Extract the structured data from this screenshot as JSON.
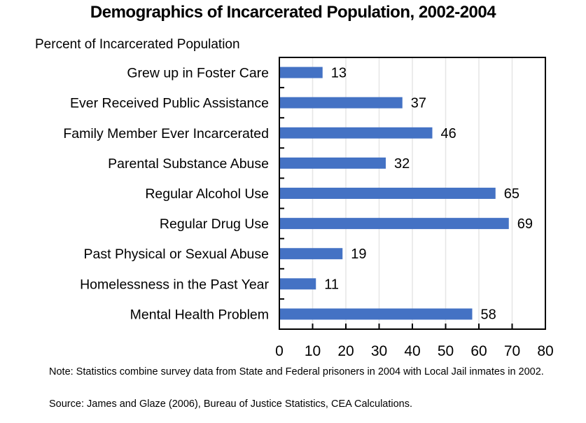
{
  "chart_data": {
    "type": "bar",
    "orientation": "horizontal",
    "title": "Demographics of Incarcerated Population, 2002-2004",
    "ylabel": "Percent of Incarcerated Population",
    "xlabel": "",
    "categories": [
      "Grew up in Foster Care",
      "Ever Received Public Assistance",
      "Family Member Ever Incarcerated",
      "Parental Substance Abuse",
      "Regular Alcohol Use",
      "Regular Drug Use",
      "Past Physical or Sexual Abuse",
      "Homelessness in the Past Year",
      "Mental Health Problem"
    ],
    "values": [
      13,
      37,
      46,
      32,
      65,
      69,
      19,
      11,
      58
    ],
    "data_labels": [
      "13",
      "37",
      "46",
      "32",
      "65",
      "69",
      "19",
      "11",
      "58"
    ],
    "xlim": [
      0,
      80
    ],
    "xticks": [
      0,
      10,
      20,
      30,
      40,
      50,
      60,
      70,
      80
    ],
    "grid": "vertical",
    "legend": "none",
    "bar_color": "#4472C4"
  },
  "notes": {
    "note": "Note: Statistics combine survey data from State and Federal prisoners in 2004 with Local Jail inmates in 2002.",
    "source": "Source: James and Glaze (2006), Bureau of Justice Statistics, CEA Calculations."
  }
}
